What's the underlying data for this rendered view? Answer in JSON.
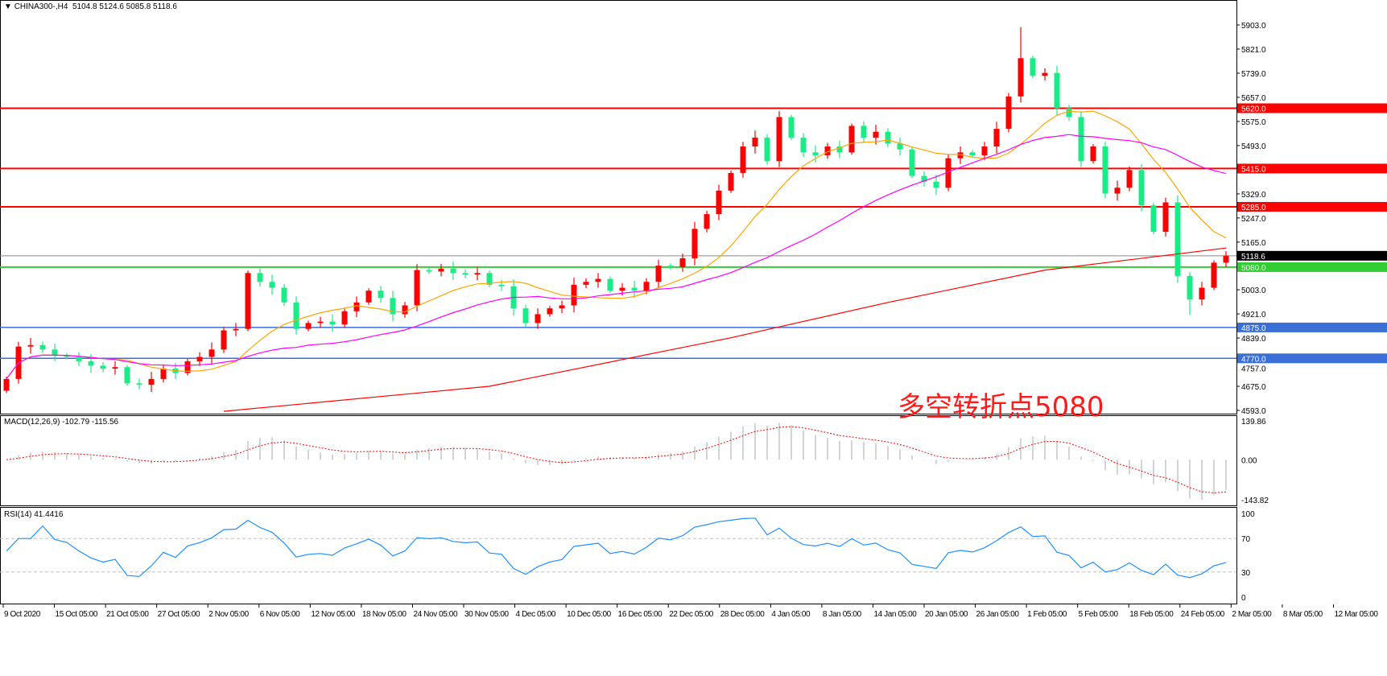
{
  "header": {
    "symbol": "CHINA300-,H4",
    "ohlc": "5104.8 5124.6 5085.8 5118.6",
    "macd_label": "MACD(12,26,9) -102.79 -115.56",
    "rsi_label": "RSI(14) 41.4416"
  },
  "annotation": "多空转折点5080",
  "colors": {
    "up_candle": "#ff0000",
    "down_candle": "#19ec86",
    "ma_fast": "#ffa500",
    "ma_mid": "#ff00ff",
    "ma_slow": "#ff0000",
    "resistance": "#ff0000",
    "pivot": "#33cc33",
    "support": "#3a6fd8",
    "current_price": "#888888",
    "rsi": "#1e90ff",
    "macd_hist": "#b8b8b8",
    "macd_signal": "#ff0000"
  },
  "chart_data": {
    "type": "candlestick",
    "ylim": [
      4593,
      5903
    ],
    "price_ticks": [
      5903.0,
      5821.0,
      5739.0,
      5657.0,
      5575.0,
      5493.0,
      5329.0,
      5247.0,
      5165.0,
      5003.0,
      4921.0,
      4839.0,
      4757.0,
      4675.0,
      4593.0
    ],
    "time_labels": [
      "9 Oct 2020",
      "15 Oct 05:00",
      "21 Oct 05:00",
      "27 Oct 05:00",
      "2 Nov 05:00",
      "6 Nov 05:00",
      "12 Nov 05:00",
      "18 Nov 05:00",
      "24 Nov 05:00",
      "30 Nov 05:00",
      "4 Dec 05:00",
      "10 Dec 05:00",
      "16 Dec 05:00",
      "22 Dec 05:00",
      "28 Dec 05:00",
      "4 Jan 05:00",
      "8 Jan 05:00",
      "14 Jan 05:00",
      "20 Jan 05:00",
      "26 Jan 05:00",
      "1 Feb 05:00",
      "5 Feb 05:00",
      "18 Feb 05:00",
      "24 Feb 05:00",
      "2 Mar 05:00",
      "8 Mar 05:00",
      "12 Mar 05:00"
    ],
    "first_open": 4660,
    "close": [
      4700,
      4810,
      4815,
      4800,
      4780,
      4775,
      4760,
      4745,
      4735,
      4740,
      4685,
      4680,
      4700,
      4735,
      4720,
      4760,
      4775,
      4800,
      4865,
      4870,
      5060,
      5030,
      5010,
      4960,
      4870,
      4890,
      4895,
      4885,
      4930,
      4960,
      5000,
      4975,
      4920,
      4950,
      5070,
      5065,
      5075,
      5060,
      5055,
      5060,
      5020,
      5015,
      4940,
      4890,
      4920,
      4940,
      4950,
      5020,
      5030,
      5040,
      5000,
      5010,
      5000,
      5030,
      5085,
      5080,
      5110,
      5210,
      5260,
      5340,
      5400,
      5490,
      5520,
      5440,
      5590,
      5520,
      5470,
      5460,
      5490,
      5470,
      5560,
      5520,
      5540,
      5500,
      5480,
      5390,
      5370,
      5350,
      5450,
      5470,
      5460,
      5490,
      5550,
      5660,
      5790,
      5730,
      5740,
      5620,
      5590,
      5440,
      5490,
      5330,
      5350,
      5410,
      5290,
      5200,
      5300,
      5050,
      4970,
      5010,
      5095,
      5118.6
    ],
    "ma_slow_points": [
      [
        18,
        4590
      ],
      [
        40,
        4675
      ],
      [
        60,
        4840
      ],
      [
        73,
        4960
      ],
      [
        86,
        5070
      ],
      [
        101,
        5145
      ]
    ],
    "levels": [
      {
        "price": 5620.0,
        "label": "5620.0",
        "kind": "resistance"
      },
      {
        "price": 5415.0,
        "label": "5415.0",
        "kind": "resistance"
      },
      {
        "price": 5285.0,
        "label": "5285.0",
        "kind": "resistance"
      },
      {
        "price": 5080.0,
        "label": "5080.0",
        "kind": "pivot"
      },
      {
        "price": 4875.0,
        "label": "4875.0",
        "kind": "support"
      },
      {
        "price": 4770.0,
        "label": "4770.0",
        "kind": "support"
      }
    ],
    "current_price": {
      "price": 5118.6,
      "label": "5118.6"
    },
    "macd": {
      "ylim": [
        -143.82,
        139.86
      ],
      "ticks": [
        "139.86",
        "0.00",
        "-143.82"
      ]
    },
    "rsi": {
      "value": 41.4416,
      "ylim": [
        0,
        100
      ],
      "levels": [
        30,
        70
      ],
      "ticks": [
        "100",
        "70",
        "30",
        "0"
      ]
    }
  }
}
